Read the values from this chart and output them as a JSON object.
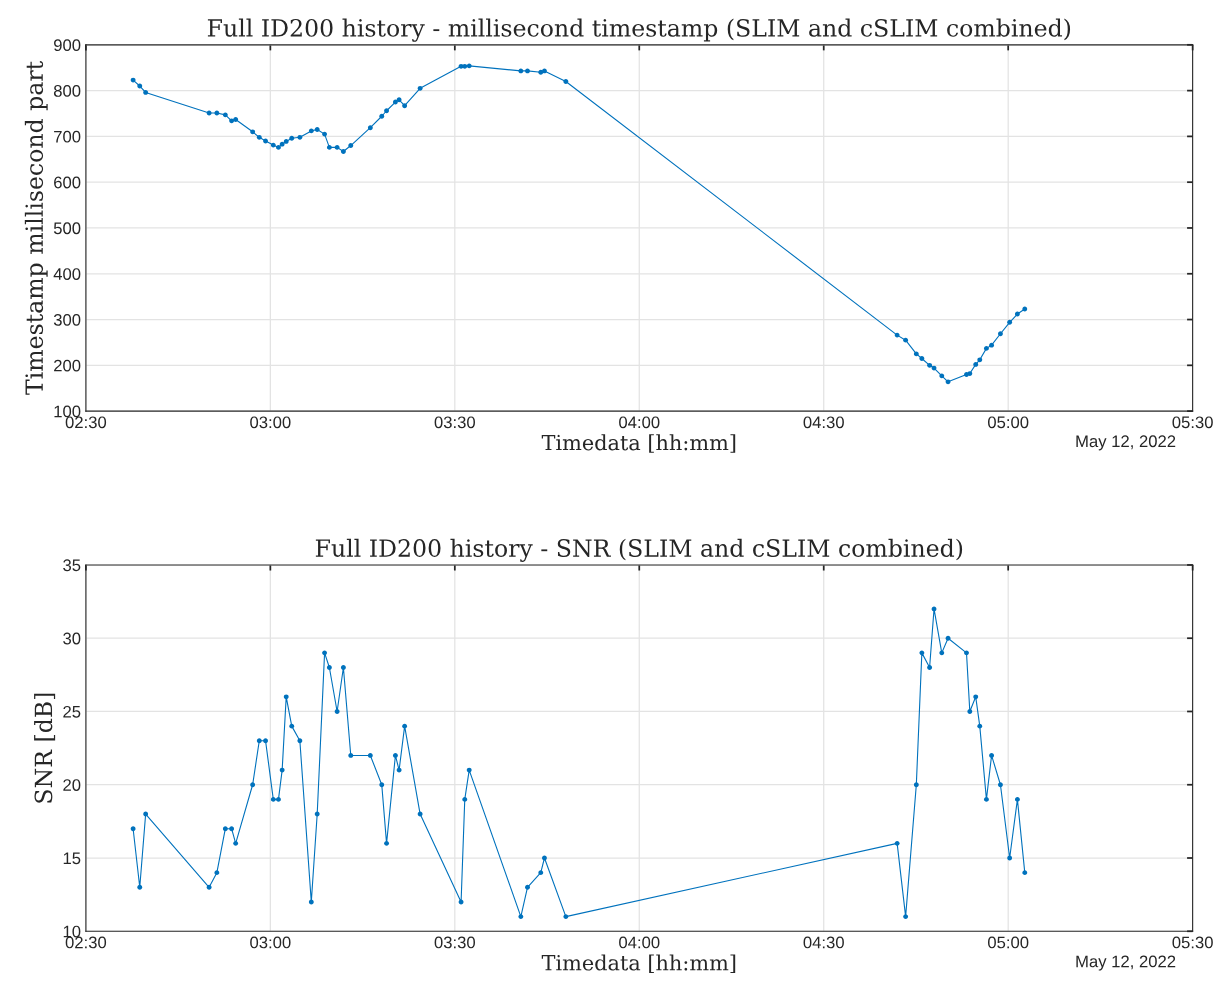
{
  "chart_data": [
    {
      "type": "line",
      "title": "Full ID200 history - millisecond timestamp (SLIM and cSLIM combined)",
      "xlabel": "Timedata [hh:mm]",
      "ylabel": "Timestamp millisecond part",
      "annotations": [
        "May 12, 2022"
      ],
      "x": [
        2.628,
        2.646,
        2.662,
        2.834,
        2.855,
        2.878,
        2.895,
        2.906,
        2.952,
        2.97,
        2.987,
        3.008,
        3.022,
        3.032,
        3.043,
        3.058,
        3.08,
        3.111,
        3.127,
        3.147,
        3.16,
        3.181,
        3.198,
        3.218,
        3.271,
        3.302,
        3.315,
        3.339,
        3.349,
        3.364,
        3.406,
        3.517,
        3.527,
        3.539,
        3.679,
        3.697,
        3.733,
        3.743,
        3.801,
        4.699,
        4.722,
        4.751,
        4.766,
        4.787,
        4.799,
        4.82,
        4.837,
        4.887,
        4.896,
        4.912,
        4.923,
        4.941,
        4.955,
        4.979,
        5.004,
        5.025,
        5.045
      ],
      "series": [
        {
          "color": "#0072bd",
          "values": [
            823,
            810,
            796,
            751,
            751,
            747,
            734,
            737,
            710,
            698,
            690,
            681,
            676,
            683,
            689,
            696,
            698,
            712,
            715,
            705,
            676,
            676,
            667,
            680,
            719,
            744,
            756,
            775,
            780,
            767,
            805,
            853,
            853,
            854,
            843,
            843,
            840,
            843,
            820,
            266,
            255,
            225,
            215,
            200,
            194,
            177,
            164,
            180,
            182,
            202,
            212,
            237,
            244,
            269,
            294,
            312,
            323
          ]
        }
      ],
      "xlim": [
        2.5,
        5.5
      ],
      "xticks": [
        {
          "value": 2.5,
          "label": "02:30"
        },
        {
          "value": 3.0,
          "label": "03:00"
        },
        {
          "value": 3.5,
          "label": "03:30"
        },
        {
          "value": 4.0,
          "label": "04:00"
        },
        {
          "value": 4.5,
          "label": "04:30"
        },
        {
          "value": 5.0,
          "label": "05:00"
        },
        {
          "value": 5.5,
          "label": "05:30"
        }
      ],
      "ylim": [
        100,
        900
      ],
      "yticks": [
        100,
        200,
        300,
        400,
        500,
        600,
        700,
        800,
        900
      ],
      "grid": true,
      "marker": "circle",
      "line_style": "solid",
      "legend": false
    },
    {
      "type": "line",
      "title": "Full ID200 history - SNR (SLIM and cSLIM combined)",
      "xlabel": "Timedata [hh:mm]",
      "ylabel": "SNR [dB]",
      "annotations": [
        "May 12, 2022"
      ],
      "x": [
        2.628,
        2.646,
        2.662,
        2.834,
        2.855,
        2.878,
        2.895,
        2.906,
        2.952,
        2.97,
        2.987,
        3.008,
        3.022,
        3.032,
        3.043,
        3.058,
        3.08,
        3.111,
        3.127,
        3.147,
        3.16,
        3.181,
        3.198,
        3.218,
        3.271,
        3.302,
        3.315,
        3.339,
        3.349,
        3.364,
        3.406,
        3.517,
        3.527,
        3.539,
        3.679,
        3.697,
        3.733,
        3.743,
        3.801,
        4.699,
        4.722,
        4.751,
        4.766,
        4.787,
        4.799,
        4.82,
        4.837,
        4.887,
        4.896,
        4.912,
        4.923,
        4.941,
        4.955,
        4.979,
        5.004,
        5.025,
        5.045
      ],
      "series": [
        {
          "color": "#0072bd",
          "values": [
            17,
            13,
            18,
            13,
            14,
            17,
            17,
            16,
            20,
            23,
            23,
            19,
            19,
            21,
            26,
            24,
            23,
            12,
            18,
            29,
            28,
            25,
            28,
            22,
            22,
            20,
            16,
            22,
            21,
            24,
            18,
            12,
            19,
            21,
            11,
            13,
            14,
            15,
            11,
            16,
            11,
            20,
            29,
            28,
            32,
            29,
            30,
            29,
            25,
            26,
            24,
            19,
            22,
            20,
            15,
            19,
            14
          ]
        }
      ],
      "xlim": [
        2.5,
        5.5
      ],
      "xticks": [
        {
          "value": 2.5,
          "label": "02:30"
        },
        {
          "value": 3.0,
          "label": "03:00"
        },
        {
          "value": 3.5,
          "label": "03:30"
        },
        {
          "value": 4.0,
          "label": "04:00"
        },
        {
          "value": 4.5,
          "label": "04:30"
        },
        {
          "value": 5.0,
          "label": "05:00"
        },
        {
          "value": 5.5,
          "label": "05:30"
        }
      ],
      "ylim": [
        10,
        35
      ],
      "yticks": [
        10,
        15,
        20,
        25,
        30,
        35
      ],
      "grid": true,
      "marker": "circle",
      "line_style": "solid",
      "legend": false
    }
  ]
}
